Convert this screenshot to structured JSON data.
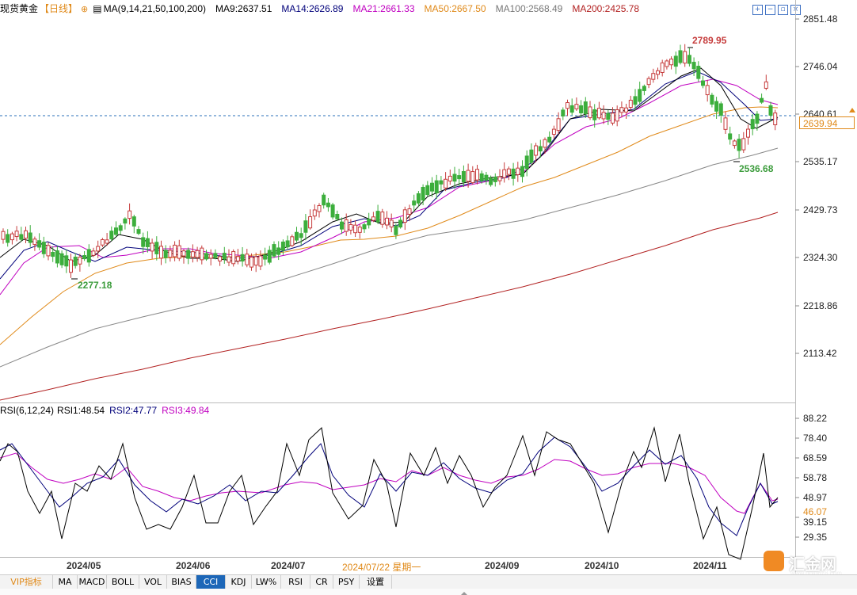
{
  "header": {
    "symbol": "现货黄金",
    "period": "【日线】",
    "period_icon": "circle-plus-icon",
    "ma_icon": "indicator-icon",
    "ma_param": "MA(9,14,21,50,100,200)",
    "ma9": "MA9:2637.51",
    "ma14": "MA14:2626.89",
    "ma21": "MA21:2661.33",
    "ma50": "MA50:2667.50",
    "ma100": "MA100:2568.49",
    "ma200": "MA200:2425.78"
  },
  "colors": {
    "ma9": "#000000",
    "ma14": "#00007a",
    "ma21": "#c000c0",
    "ma50": "#e08a1a",
    "ma100": "#888888",
    "ma200": "#b22222",
    "up": "#c63d3d",
    "down": "#3cae3c",
    "accent": "#e08a1a"
  },
  "toolbar": [
    "zoom-in-icon",
    "zoom-out-icon",
    "restore-icon",
    "close-icon"
  ],
  "price_axis": [
    "2851.48",
    "2746.04",
    "2640.61",
    "2535.17",
    "2429.73",
    "2324.30",
    "2218.86",
    "2113.42"
  ],
  "current_price": "2639.94",
  "annotations": {
    "high": "2789.95",
    "low_right": "2536.68",
    "low_left": "2277.18"
  },
  "rsi": {
    "label": "RSI(6,12,24)",
    "rsi1": "RSI1:48.54",
    "rsi2": "RSI2:47.77",
    "rsi3": "RSI3:49.84",
    "axis": [
      "88.22",
      "78.40",
      "68.59",
      "58.78",
      "48.97",
      "39.15",
      "29.35"
    ],
    "current": "46.07"
  },
  "dates": [
    "2024/05",
    "2024/06",
    "2024/07",
    "2024/07/22 星期一",
    "2024/09",
    "2024/10",
    "2024/11"
  ],
  "tabs": [
    "VIP指标",
    "MA",
    "MACD",
    "BOLL",
    "VOL",
    "BIAS",
    "CCI",
    "KDJ",
    "LW%",
    "RSI",
    "CR",
    "PSY",
    "设置"
  ],
  "active_tab": "CCI",
  "logo": {
    "text": "汇金网",
    "url": "www.gold678.com"
  },
  "chart_data": {
    "type": "line",
    "title": "",
    "y_range": [
      2060,
      2870
    ],
    "series": [
      {
        "name": "MA200",
        "values": [
          2045,
          2060,
          2078,
          2100,
          2125,
          2152,
          2180,
          2208,
          2238,
          2268,
          2298,
          2328,
          2358,
          2388,
          2418,
          2425
        ]
      },
      {
        "name": "MA100",
        "values": [
          2155,
          2190,
          2225,
          2262,
          2300,
          2330,
          2355,
          2380,
          2410,
          2440,
          2465,
          2495,
          2520,
          2545,
          2560,
          2568
        ]
      },
      {
        "name": "MA50",
        "values": [
          2140,
          2215,
          2290,
          2310,
          2325,
          2345,
          2365,
          2380,
          2430,
          2490,
          2540,
          2580,
          2620,
          2650,
          2660,
          2667
        ]
      },
      {
        "name": "MA21",
        "values": [
          2270,
          2330,
          2325,
          2318,
          2330,
          2348,
          2368,
          2400,
          2445,
          2485,
          2560,
          2620,
          2665,
          2715,
          2685,
          2661
        ]
      }
    ]
  }
}
